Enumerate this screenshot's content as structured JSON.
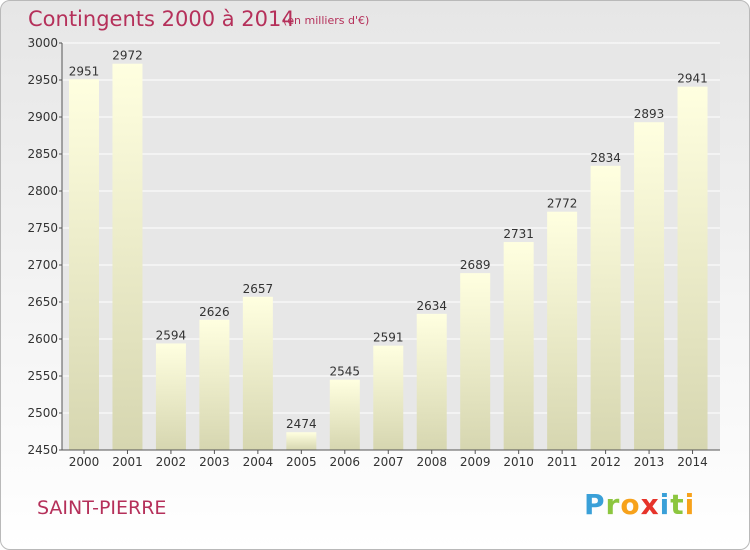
{
  "page": {
    "commune": "SAINT-PIERRE",
    "brand": [
      "P",
      "r",
      "o",
      "x",
      "i",
      "t",
      "i"
    ],
    "brand_colors": [
      "#3aa0d8",
      "#8cc63f",
      "#f7a21b",
      "#e6332a",
      "#3aa0d8",
      "#8cc63f",
      "#f7a21b"
    ]
  },
  "chart_data": {
    "type": "bar",
    "title": "Contingents 2000 à 2014",
    "subtitle": "(en milliers d'€)",
    "categories": [
      "2000",
      "2001",
      "2002",
      "2003",
      "2004",
      "2005",
      "2006",
      "2007",
      "2008",
      "2009",
      "2010",
      "2011",
      "2012",
      "2013",
      "2014"
    ],
    "values": [
      2951,
      2972,
      2594,
      2626,
      2657,
      2474,
      2545,
      2591,
      2634,
      2689,
      2731,
      2772,
      2834,
      2893,
      2941
    ],
    "ylim": [
      2450,
      3000
    ],
    "yticks": [
      2450,
      2500,
      2550,
      2600,
      2650,
      2700,
      2750,
      2800,
      2850,
      2900,
      2950,
      3000
    ],
    "grid": true,
    "colors": {
      "bar_top": "#ffffe0",
      "bar_bottom": "#d6d6b0",
      "title": "#b5305a",
      "grid": "#ffffff",
      "axis": "#555555"
    }
  }
}
